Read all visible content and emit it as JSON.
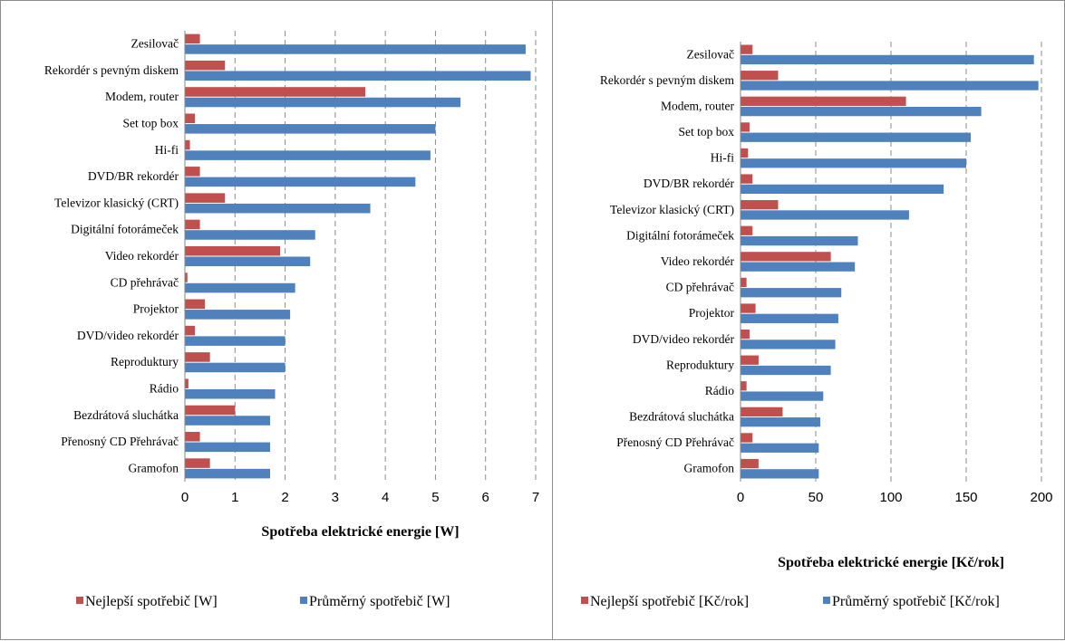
{
  "colors": {
    "best": "#C0504D",
    "average": "#4F81BD",
    "grid": "#8C8C8C"
  },
  "chart_data": [
    {
      "type": "bar",
      "orientation": "horizontal",
      "categories": [
        "Zesilovač",
        "Rekordér s pevným diskem",
        "Modem, router",
        "Set top box",
        "Hi-fi",
        "DVD/BR rekordér",
        "Televizor klasický (CRT)",
        "Digitální fotorámeček",
        "Video rekordér",
        "CD přehrávač",
        "Projektor",
        "DVD/video rekordér",
        "Reproduktury",
        "Rádio",
        "Bezdrátová sluchátka",
        "Přenosný CD Přehrávač",
        "Gramofon"
      ],
      "series": [
        {
          "name": "Nejlepší spotřebič [W]",
          "values": [
            0.3,
            0.8,
            3.6,
            0.2,
            0.1,
            0.3,
            0.8,
            0.3,
            1.9,
            0.05,
            0.4,
            0.2,
            0.5,
            0.07,
            1.0,
            0.3,
            0.5
          ]
        },
        {
          "name": "Průměrný spotřebič [W]",
          "values": [
            6.8,
            6.9,
            5.5,
            5.0,
            4.9,
            4.6,
            3.7,
            2.6,
            2.5,
            2.2,
            2.1,
            2.0,
            2.0,
            1.8,
            1.7,
            1.7,
            1.7
          ]
        }
      ],
      "xlabel": "Spotřeba elektrické energie [W]",
      "xlim": [
        0,
        7
      ],
      "ticks": [
        "0",
        "1",
        "2",
        "3",
        "4",
        "5",
        "6",
        "7"
      ],
      "tick_values": [
        0,
        1,
        2,
        3,
        4,
        5,
        6,
        7
      ],
      "grid": "vertical dashed",
      "legend": "bottom"
    },
    {
      "type": "bar",
      "orientation": "horizontal",
      "categories": [
        "Zesilovač",
        "Rekordér s pevným diskem",
        "Modem, router",
        "Set top box",
        "Hi-fi",
        "DVD/BR rekordér",
        "Televizor klasický (CRT)",
        "Digitální fotorámeček",
        "Video rekordér",
        "CD přehrávač",
        "Projektor",
        "DVD/video rekordér",
        "Reproduktury",
        "Rádio",
        "Bezdrátová sluchátka",
        "Přenosný CD Přehrávač",
        "Gramofon"
      ],
      "series": [
        {
          "name": "Nejlepší spotřebič [Kč/rok]",
          "values": [
            8,
            25,
            110,
            6,
            5,
            8,
            25,
            8,
            60,
            4,
            10,
            6,
            12,
            4,
            28,
            8,
            12
          ]
        },
        {
          "name": "Průměrný spotřebič [Kč/rok]",
          "values": [
            195,
            198,
            160,
            153,
            150,
            135,
            112,
            78,
            76,
            67,
            65,
            63,
            60,
            55,
            53,
            52,
            52
          ]
        }
      ],
      "xlabel": "Spotřeba elektrické energie [Kč/rok]",
      "xlim": [
        0,
        200
      ],
      "ticks": [
        "0",
        "50",
        "100",
        "150",
        "200"
      ],
      "tick_values": [
        0,
        50,
        100,
        150,
        200
      ],
      "grid": "vertical dashed",
      "legend": "bottom"
    }
  ]
}
